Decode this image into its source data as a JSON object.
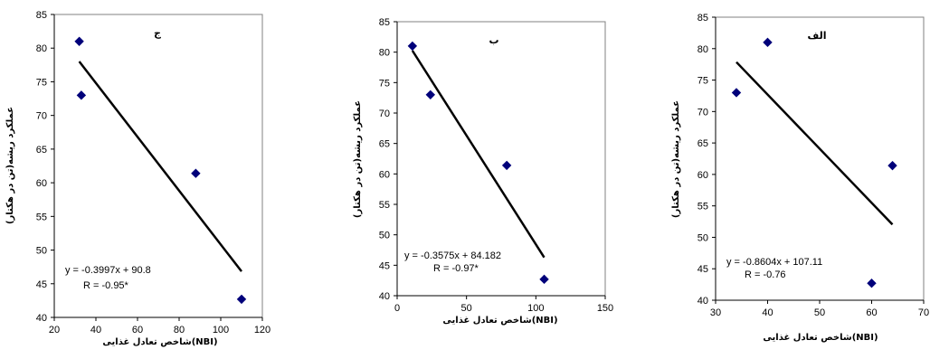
{
  "chart_data": [
    {
      "type": "scatter",
      "title": "ج",
      "xlabel": "شاخص تعادل غذایی(NBI)",
      "ylabel": "عملکرد ریشه(تن در هکتار)",
      "xlim": [
        20,
        120
      ],
      "ylim": [
        40,
        85
      ],
      "xticks": [
        20,
        40,
        60,
        80,
        100,
        120
      ],
      "yticks": [
        40,
        45,
        50,
        55,
        60,
        65,
        70,
        75,
        80,
        85
      ],
      "points": [
        [
          32,
          81
        ],
        [
          33,
          73
        ],
        [
          88,
          61.4
        ],
        [
          110,
          42.7
        ]
      ],
      "trendline": {
        "slope": -0.3997,
        "intercept": 90.8,
        "x_range": [
          32,
          110
        ]
      },
      "equation": "y = -0.3997x + 90.8",
      "r_label": "R = -0.95*",
      "marker_color": "#00007a",
      "grid": false
    },
    {
      "type": "scatter",
      "title": "ب",
      "xlabel": "شاخص تعادل غذایی(NBI)",
      "ylabel": "عملکرد ریشه(تن در هکتار)",
      "xlim": [
        0,
        150
      ],
      "ylim": [
        40,
        85
      ],
      "xticks": [
        0,
        50,
        100,
        150
      ],
      "yticks": [
        40,
        45,
        50,
        55,
        60,
        65,
        70,
        75,
        80,
        85
      ],
      "points": [
        [
          11,
          81
        ],
        [
          24,
          73
        ],
        [
          79,
          61.4
        ],
        [
          106,
          42.7
        ]
      ],
      "trendline": {
        "slope": -0.3575,
        "intercept": 84.182,
        "x_range": [
          11,
          106
        ]
      },
      "equation": "y = -0.3575x + 84.182",
      "r_label": "R = -0.97*",
      "marker_color": "#00007a",
      "grid": false
    },
    {
      "type": "scatter",
      "title": "الف",
      "xlabel": "شاخص تعادل غذایی(NBI)",
      "ylabel": "عملکرد ریشه(تن در هکتار)",
      "xlim": [
        30,
        70
      ],
      "ylim": [
        40,
        85
      ],
      "xticks": [
        30,
        40,
        50,
        60,
        70
      ],
      "yticks": [
        40,
        45,
        50,
        55,
        60,
        65,
        70,
        75,
        80,
        85
      ],
      "points": [
        [
          34,
          73
        ],
        [
          40,
          81
        ],
        [
          60,
          42.7
        ],
        [
          64,
          61.4
        ]
      ],
      "trendline": {
        "slope": -0.8604,
        "intercept": 107.11,
        "x_range": [
          34,
          64
        ]
      },
      "equation": "y = -0.8604x + 107.11",
      "r_label": "R = -0.76",
      "marker_color": "#00007a",
      "grid": false
    }
  ]
}
